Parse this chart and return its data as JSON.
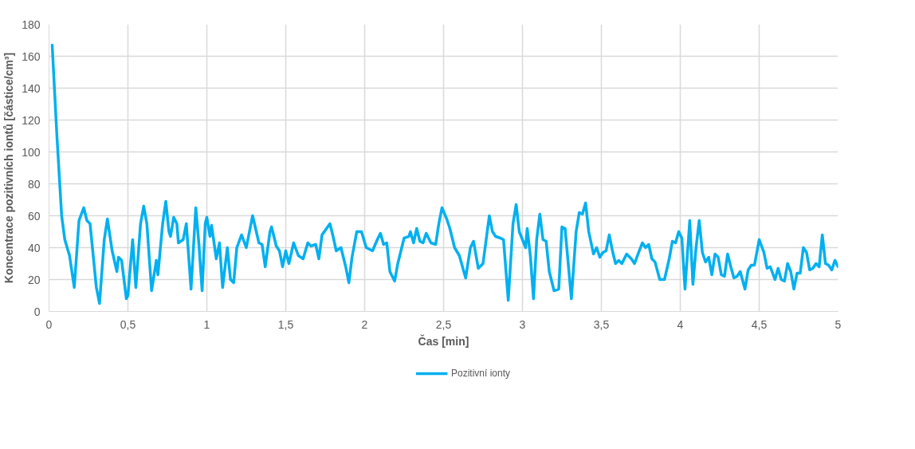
{
  "chart_data": {
    "type": "line",
    "xlabel": "Čas [min]",
    "ylabel": "Koncentrace pozitivních iontů [částice/cm³]",
    "xlim": [
      0,
      5
    ],
    "ylim": [
      0,
      180
    ],
    "xticks": [
      0,
      {
        "value": 0.5,
        "label": "0,5"
      },
      1,
      {
        "value": 1.5,
        "label": "1,5"
      },
      2,
      {
        "value": 2.5,
        "label": "2,5"
      },
      3,
      {
        "value": 3.5,
        "label": "3,5"
      },
      4,
      {
        "value": 4.5,
        "label": "4,5"
      },
      5
    ],
    "yticks": [
      0,
      20,
      40,
      60,
      80,
      100,
      120,
      140,
      160,
      180
    ],
    "grid": true,
    "legend": "bottom",
    "marker": "none",
    "line_style": "solid",
    "series": [
      {
        "name": "Pozitivní ionty",
        "color": "#00b0f0",
        "x": [
          0.02,
          0.05,
          0.08,
          0.1,
          0.13,
          0.16,
          0.19,
          0.22,
          0.24,
          0.26,
          0.3,
          0.32,
          0.35,
          0.37,
          0.4,
          0.43,
          0.44,
          0.46,
          0.49,
          0.5,
          0.53,
          0.55,
          0.58,
          0.6,
          0.62,
          0.65,
          0.68,
          0.69,
          0.72,
          0.74,
          0.76,
          0.77,
          0.79,
          0.81,
          0.82,
          0.85,
          0.87,
          0.9,
          0.93,
          0.95,
          0.97,
          0.99,
          1.0,
          1.02,
          1.03,
          1.06,
          1.08,
          1.1,
          1.13,
          1.15,
          1.17,
          1.19,
          1.22,
          1.25,
          1.29,
          1.33,
          1.35,
          1.37,
          1.4,
          1.41,
          1.44,
          1.46,
          1.48,
          1.5,
          1.52,
          1.55,
          1.58,
          1.61,
          1.64,
          1.66,
          1.69,
          1.71,
          1.73,
          1.78,
          1.8,
          1.82,
          1.85,
          1.88,
          1.9,
          1.92,
          1.95,
          1.98,
          2.01,
          2.05,
          2.08,
          2.1,
          2.12,
          2.14,
          2.16,
          2.19,
          2.21,
          2.25,
          2.28,
          2.29,
          2.31,
          2.33,
          2.35,
          2.37,
          2.39,
          2.42,
          2.45,
          2.47,
          2.49,
          2.52,
          2.54,
          2.57,
          2.6,
          2.64,
          2.67,
          2.69,
          2.72,
          2.75,
          2.77,
          2.79,
          2.81,
          2.83,
          2.86,
          2.88,
          2.91,
          2.94,
          2.96,
          2.98,
          3.0,
          3.02,
          3.03,
          3.05,
          3.07,
          3.09,
          3.11,
          3.13,
          3.15,
          3.17,
          3.2,
          3.23,
          3.25,
          3.27,
          3.31,
          3.34,
          3.36,
          3.38,
          3.4,
          3.42,
          3.45,
          3.47,
          3.49,
          3.51,
          3.53,
          3.55,
          3.57,
          3.59,
          3.61,
          3.63,
          3.66,
          3.69,
          3.71,
          3.74,
          3.76,
          3.78,
          3.8,
          3.82,
          3.84,
          3.87,
          3.9,
          3.93,
          3.95,
          3.97,
          3.99,
          4.01,
          4.03,
          4.06,
          4.08,
          4.1,
          4.12,
          4.14,
          4.16,
          4.18,
          4.2,
          4.22,
          4.24,
          4.26,
          4.28,
          4.3,
          4.32,
          4.34,
          4.36,
          4.38,
          4.41,
          4.43,
          4.45,
          4.47,
          4.5,
          4.53,
          4.55,
          4.57,
          4.6,
          4.62,
          4.64,
          4.66,
          4.68,
          4.7,
          4.72,
          4.74,
          4.76,
          4.78,
          4.8,
          4.82,
          4.84,
          4.86,
          4.88,
          4.9,
          4.92,
          4.94,
          4.96,
          4.98,
          5.0
        ],
        "values": [
          167,
          110,
          60,
          45,
          35,
          15,
          57,
          65,
          57,
          55,
          15,
          5,
          45,
          58,
          38,
          25,
          34,
          32,
          8,
          10,
          45,
          15,
          55,
          66,
          55,
          13,
          32,
          23,
          55,
          69,
          50,
          47,
          59,
          55,
          43,
          45,
          55,
          14,
          65,
          42,
          13,
          55,
          59,
          47,
          54,
          33,
          43,
          15,
          40,
          20,
          18,
          40,
          48,
          40,
          60,
          43,
          42,
          28,
          50,
          53,
          41,
          38,
          28,
          38,
          30,
          43,
          35,
          33,
          43,
          41,
          42,
          33,
          48,
          55,
          47,
          38,
          40,
          28,
          18,
          34,
          50,
          50,
          40,
          38,
          45,
          49,
          42,
          43,
          25,
          19,
          30,
          46,
          47,
          50,
          43,
          52,
          44,
          43,
          49,
          43,
          42,
          55,
          65,
          58,
          52,
          40,
          35,
          21,
          40,
          44,
          27,
          30,
          45,
          60,
          50,
          47,
          46,
          45,
          7,
          55,
          67,
          50,
          45,
          40,
          52,
          35,
          8,
          45,
          61,
          45,
          44,
          25,
          13,
          14,
          53,
          52,
          8,
          50,
          62,
          61,
          68,
          50,
          36,
          40,
          34,
          37,
          38,
          48,
          38,
          30,
          32,
          30,
          36,
          33,
          30,
          38,
          43,
          40,
          42,
          33,
          31,
          20,
          20,
          33,
          44,
          43,
          50,
          46,
          14,
          57,
          17,
          40,
          57,
          37,
          31,
          34,
          23,
          36,
          34,
          23,
          22,
          36,
          28,
          21,
          22,
          25,
          14,
          26,
          29,
          29,
          45,
          37,
          27,
          28,
          20,
          27,
          20,
          19,
          30,
          25,
          14,
          24,
          24,
          40,
          37,
          26,
          27,
          30,
          28,
          48,
          30,
          29,
          26,
          32,
          28
        ]
      }
    ]
  }
}
